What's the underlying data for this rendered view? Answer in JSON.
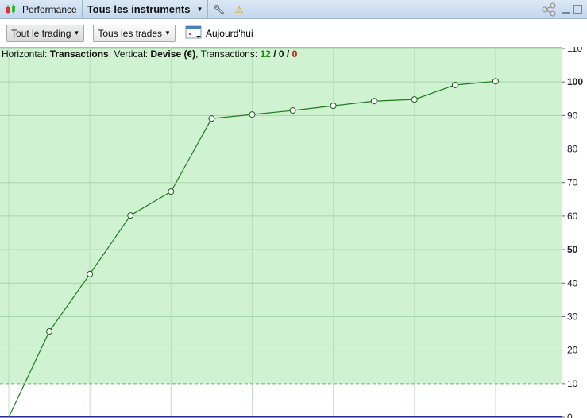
{
  "titlebar": {
    "app_label": "Performance",
    "instrument_selector": "Tous les instruments"
  },
  "toolbar": {
    "scope": "Tout le trading",
    "trades_filter": "Tous les trades",
    "date_label": "Aujourd'hui"
  },
  "info": {
    "h_label": "Horizontal: ",
    "h_value": "Transactions",
    "v_label": ", Vertical: ",
    "v_value": "Devise (€)",
    "t_label": ", Transactions: ",
    "wins": "12",
    "sep1": " / ",
    "neutral": "0",
    "sep2": " / ",
    "losses": "0"
  },
  "colors": {
    "plot_bg": "#cff2d0",
    "line": "#1e7a1e",
    "wins": "#1a8a1a",
    "losses": "#c01010",
    "axis": "#2a2a8a"
  },
  "chart_data": {
    "type": "line",
    "x": [
      0,
      1,
      2,
      3,
      4,
      5,
      6,
      7,
      8,
      9,
      10,
      11,
      12
    ],
    "values": [
      0,
      25.6,
      42.7,
      60.2,
      67.3,
      89.1,
      90.3,
      91.5,
      92.9,
      94.3,
      94.8,
      99.1,
      100.2
    ],
    "xlabel": "Transactions",
    "ylabel": "Devise (€)",
    "ylim": [
      0,
      110
    ],
    "xlim": [
      0,
      13.6
    ],
    "yticks": [
      "0",
      "10",
      "20",
      "30",
      "40",
      "50",
      "60",
      "70",
      "80",
      "90",
      "100",
      "110"
    ],
    "bold_ticks": [
      "50",
      "100"
    ],
    "threshold": 10,
    "grid": true,
    "y_axis_position": "right"
  }
}
